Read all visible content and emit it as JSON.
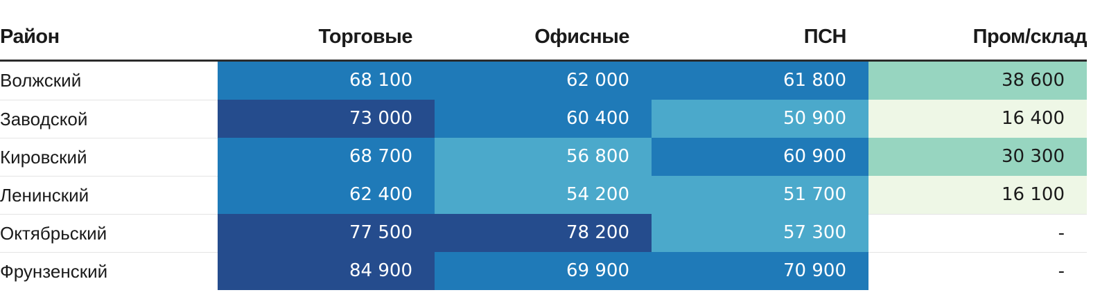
{
  "chart_data": {
    "type": "heatmap",
    "columns": [
      "Район",
      "Торговые",
      "Офисные",
      "ПСН",
      "Пром/склад"
    ],
    "rows": [
      {
        "label": "Волжский",
        "values": [
          "68 100",
          "62 000",
          "61 800",
          "38 600"
        ]
      },
      {
        "label": "Заводской",
        "values": [
          "73 000",
          "60 400",
          "50 900",
          "16 400"
        ]
      },
      {
        "label": "Кировский",
        "values": [
          "68 700",
          "56 800",
          "60 900",
          "30 300"
        ]
      },
      {
        "label": "Ленинский",
        "values": [
          "62 400",
          "54 200",
          "51 700",
          "16 100"
        ]
      },
      {
        "label": "Октябрьский",
        "values": [
          "77 500",
          "78 200",
          "57 300",
          "-"
        ]
      },
      {
        "label": "Фрунзенский",
        "values": [
          "84 900",
          "69 900",
          "70 900",
          "-"
        ]
      }
    ],
    "numeric_values": [
      [
        68100,
        62000,
        61800,
        38600
      ],
      [
        73000,
        60400,
        50900,
        16400
      ],
      [
        68700,
        56800,
        60900,
        30300
      ],
      [
        62400,
        54200,
        51700,
        16100
      ],
      [
        77500,
        78200,
        57300,
        null
      ],
      [
        84900,
        69900,
        70900,
        null
      ]
    ],
    "color_scale": [
      {
        "min": 0,
        "max": 25000,
        "bg": "#eef7e6",
        "fg": "#1a1a1a"
      },
      {
        "min": 25000,
        "max": 50000,
        "bg": "#97d5c0",
        "fg": "#1a1a1a"
      },
      {
        "min": 50000,
        "max": 60000,
        "bg": "#4ba9cb",
        "fg": "#ffffff"
      },
      {
        "min": 60000,
        "max": 72000,
        "bg": "#1f7ab8",
        "fg": "#ffffff"
      },
      {
        "min": 72000,
        "max": 100000,
        "bg": "#254c8d",
        "fg": "#ffffff"
      }
    ],
    "empty_bg": "#ffffff",
    "empty_fg": "#1a1a1a"
  }
}
